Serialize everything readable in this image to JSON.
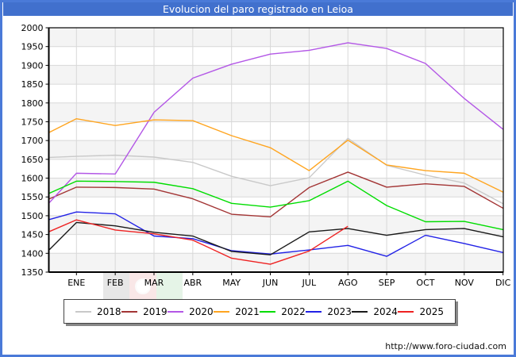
{
  "title": "Evolucion del paro registrado en Leioa",
  "footer": {
    "url": "http://www.foro-ciudad.com"
  },
  "colors": {
    "titlebar": "#4170cd",
    "outer_border": "#4a7ad8",
    "grid": "#d8d8d8",
    "band": "#f4f4f4",
    "axis": "#000000",
    "legend_shadow": "#888888"
  },
  "watermark": {
    "name": "flag-watermark",
    "stripe_colors": [
      "#222222",
      "#cc2222",
      "#119922"
    ]
  },
  "chart_data": {
    "type": "line",
    "title": "Evolucion del paro registrado en Leioa",
    "xlabel": "",
    "ylabel": "",
    "x_categories": [
      "ENE",
      "FEB",
      "MAR",
      "ABR",
      "MAY",
      "JUN",
      "JUL",
      "AGO",
      "SEP",
      "OCT",
      "NOV",
      "DIC"
    ],
    "ylim": [
      1350,
      2000
    ],
    "ytick_step": 50,
    "grid": true,
    "zebra_bands": true,
    "legend_position": "bottom",
    "edge_start_note": "each line begins at the left axis with a pre-January value",
    "series": [
      {
        "name": "2018",
        "color": "#c9c9c9",
        "edge_start": 1655,
        "values": [
          1658,
          1661,
          1656,
          1642,
          1605,
          1580,
          1601,
          1706,
          1634,
          1608,
          1587,
          1532
        ]
      },
      {
        "name": "2019",
        "color": "#a33535",
        "edge_start": 1545,
        "values": [
          1576,
          1575,
          1571,
          1545,
          1504,
          1497,
          1575,
          1616,
          1576,
          1585,
          1578,
          1520
        ]
      },
      {
        "name": "2020",
        "color": "#b357e6",
        "edge_start": 1535,
        "values": [
          1613,
          1611,
          1775,
          1866,
          1903,
          1930,
          1940,
          1960,
          1945,
          1905,
          1812,
          1730
        ]
      },
      {
        "name": "2021",
        "color": "#ffa520",
        "edge_start": 1722,
        "values": [
          1758,
          1740,
          1755,
          1753,
          1713,
          1681,
          1620,
          1701,
          1635,
          1620,
          1613,
          1563
        ]
      },
      {
        "name": "2022",
        "color": "#00dd00",
        "edge_start": 1560,
        "values": [
          1592,
          1591,
          1589,
          1572,
          1533,
          1523,
          1540,
          1592,
          1527,
          1484,
          1485,
          1463
        ]
      },
      {
        "name": "2023",
        "color": "#2222e6",
        "edge_start": 1490,
        "values": [
          1510,
          1505,
          1446,
          1439,
          1407,
          1398,
          1409,
          1421,
          1392,
          1448,
          1426,
          1402
        ]
      },
      {
        "name": "2024",
        "color": "#1a1a1a",
        "edge_start": 1410,
        "values": [
          1482,
          1473,
          1456,
          1446,
          1405,
          1396,
          1457,
          1466,
          1448,
          1463,
          1466,
          1444
        ]
      },
      {
        "name": "2025",
        "color": "#ee2222",
        "edge_start": 1458,
        "values": [
          1489,
          1462,
          1452,
          1435,
          1387,
          1371,
          1406,
          1472,
          null,
          null,
          null,
          null
        ]
      }
    ]
  }
}
